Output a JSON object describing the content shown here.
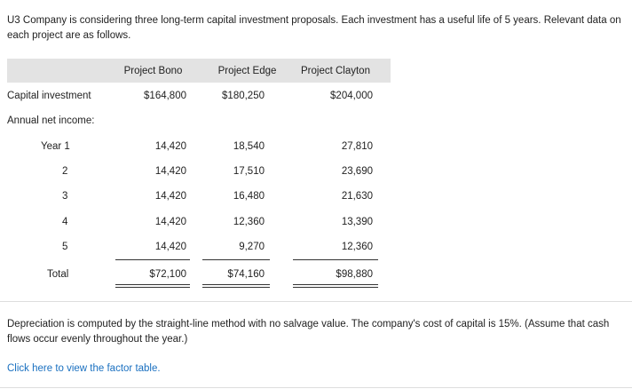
{
  "intro_text": "U3 Company is considering three long-term capital investment proposals. Each investment has a useful life of 5 years. Relevant data on each project are as follows.",
  "table": {
    "headers": [
      "Project Bono",
      "Project Edge",
      "Project Clayton"
    ],
    "capital_investment": {
      "label": "Capital investment",
      "values": [
        "$164,800",
        "$180,250",
        "$204,000"
      ]
    },
    "annual_net_income_label": "Annual net income:",
    "years": [
      {
        "label": "Year  1",
        "values": [
          "14,420",
          "18,540",
          "27,810"
        ]
      },
      {
        "label": "2",
        "values": [
          "14,420",
          "17,510",
          "23,690"
        ]
      },
      {
        "label": "3",
        "values": [
          "14,420",
          "16,480",
          "21,630"
        ]
      },
      {
        "label": "4",
        "values": [
          "14,420",
          "12,360",
          "13,390"
        ]
      },
      {
        "label": "5",
        "values": [
          "14,420",
          "9,270",
          "12,360"
        ]
      }
    ],
    "total": {
      "label": "Total",
      "values": [
        "$72,100",
        "$74,160",
        "$98,880"
      ]
    }
  },
  "note_text": "Depreciation is computed by the straight-line method with no salvage value. The company's cost of capital is 15%. (Assume that cash flows occur evenly throughout the year.)",
  "factor_table_link": "Click here to view the factor table."
}
